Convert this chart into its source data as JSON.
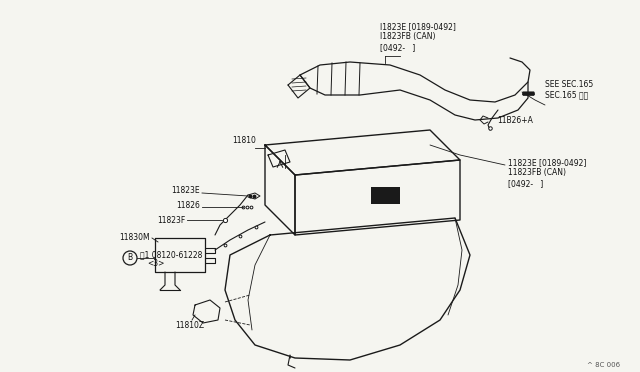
{
  "bg_color": "#f5f5f0",
  "line_color": "#1a1a1a",
  "text_color": "#111111",
  "watermark": "^ 8C 006",
  "labels": {
    "top_label": "I1823E [0189-0492]\nI1823FB (CAN)\n[0492-   ]",
    "see_sec": "SEE SEC.165\nSEC.165 参照",
    "l11826a": "11B26+A",
    "right_label": "11823E [0189-0492]\n11823FB (CAN)\n[0492-   ]",
    "l11810": "11810",
    "l11823e": "11823E",
    "l11826": "11826",
    "l11823f": "11823F",
    "l11830m": "11830M",
    "l08120_line1": "⑂1 08120-61228",
    "l08120_line2": "<3>",
    "l11810z": "11810Z"
  }
}
